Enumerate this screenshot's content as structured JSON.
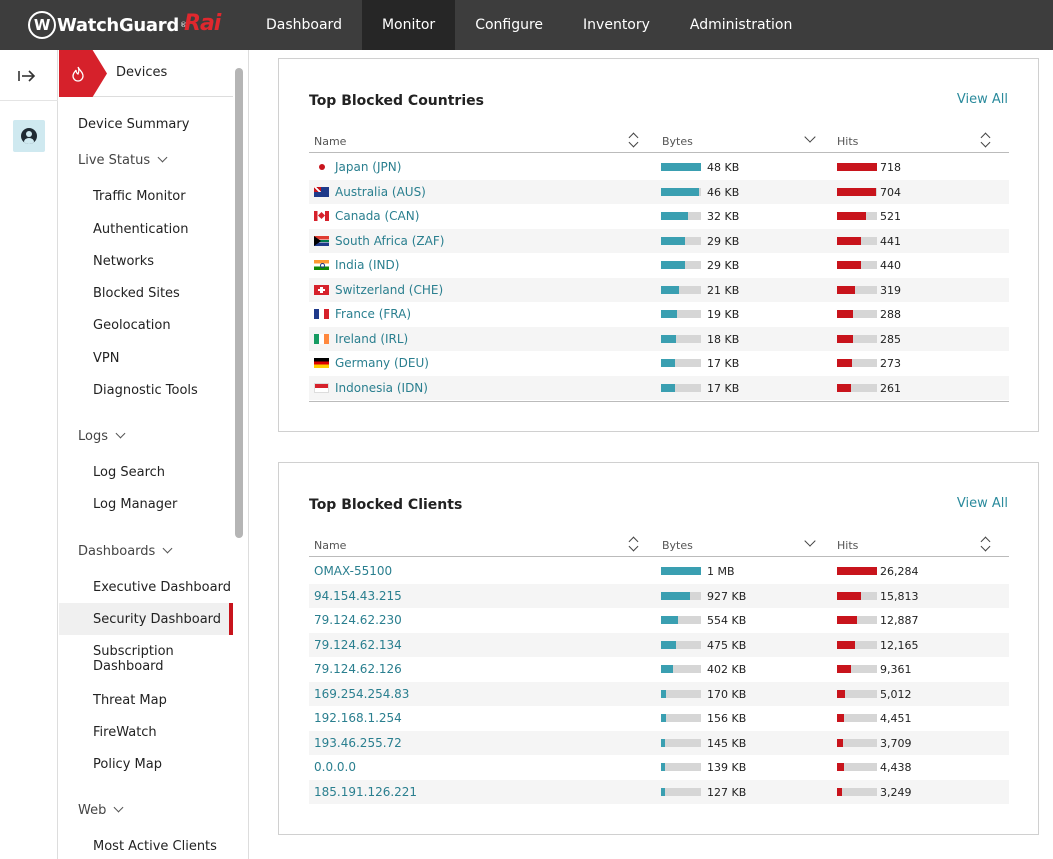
{
  "topbar": {
    "brand": "WatchGuard",
    "brand_tm": "®",
    "product": "Rai",
    "nav": [
      {
        "label": "Dashboard",
        "active": false
      },
      {
        "label": "Monitor",
        "active": true
      },
      {
        "label": "Configure",
        "active": false
      },
      {
        "label": "Inventory",
        "active": false
      },
      {
        "label": "Administration",
        "active": false
      }
    ]
  },
  "rail": {
    "toggle_icon": "expand-arrow-icon",
    "user_icon": "user-circle-icon"
  },
  "sidebar": {
    "header": "Devices",
    "items": [
      {
        "label": "Device Summary",
        "level": 1
      },
      {
        "label": "Live Status",
        "level": 1,
        "section": true
      },
      {
        "label": "Traffic Monitor",
        "level": 2
      },
      {
        "label": "Authentication",
        "level": 2
      },
      {
        "label": "Networks",
        "level": 2
      },
      {
        "label": "Blocked Sites",
        "level": 2
      },
      {
        "label": "Geolocation",
        "level": 2
      },
      {
        "label": "VPN",
        "level": 2
      },
      {
        "label": "Diagnostic Tools",
        "level": 2
      },
      {
        "label": "Logs",
        "level": 1,
        "section": true
      },
      {
        "label": "Log Search",
        "level": 2
      },
      {
        "label": "Log Manager",
        "level": 2
      },
      {
        "label": "Dashboards",
        "level": 1,
        "section": true
      },
      {
        "label": "Executive Dashboard",
        "level": 2
      },
      {
        "label": "Security Dashboard",
        "level": 2,
        "active": true
      },
      {
        "label": "Subscription",
        "level": 2
      },
      {
        "label": "Dashboard",
        "level": 2
      },
      {
        "label": "Threat Map",
        "level": 2
      },
      {
        "label": "FireWatch",
        "level": 2
      },
      {
        "label": "Policy Map",
        "level": 2
      },
      {
        "label": "Web",
        "level": 1,
        "section": true
      },
      {
        "label": "Most Active Clients",
        "level": 2
      }
    ]
  },
  "countries": {
    "title": "Top Blocked Countries",
    "view_all": "View All",
    "columns": {
      "name": "Name",
      "bytes": "Bytes",
      "hits": "Hits"
    },
    "rows": [
      {
        "name": "Japan (JPN)",
        "flag": "jp",
        "bytes": "48 KB",
        "bytes_frac": 1.0,
        "hits": "718",
        "hits_frac": 1.0
      },
      {
        "name": "Australia (AUS)",
        "flag": "au",
        "bytes": "46 KB",
        "bytes_frac": 0.96,
        "hits": "704",
        "hits_frac": 0.98
      },
      {
        "name": "Canada (CAN)",
        "flag": "ca",
        "bytes": "32 KB",
        "bytes_frac": 0.67,
        "hits": "521",
        "hits_frac": 0.73
      },
      {
        "name": "South Africa (ZAF)",
        "flag": "za",
        "bytes": "29 KB",
        "bytes_frac": 0.6,
        "hits": "441",
        "hits_frac": 0.61
      },
      {
        "name": "India (IND)",
        "flag": "in",
        "bytes": "29 KB",
        "bytes_frac": 0.6,
        "hits": "440",
        "hits_frac": 0.61
      },
      {
        "name": "Switzerland (CHE)",
        "flag": "ch",
        "bytes": "21 KB",
        "bytes_frac": 0.44,
        "hits": "319",
        "hits_frac": 0.44
      },
      {
        "name": "France (FRA)",
        "flag": "fr",
        "bytes": "19 KB",
        "bytes_frac": 0.4,
        "hits": "288",
        "hits_frac": 0.4
      },
      {
        "name": "Ireland (IRL)",
        "flag": "ie",
        "bytes": "18 KB",
        "bytes_frac": 0.38,
        "hits": "285",
        "hits_frac": 0.4
      },
      {
        "name": "Germany (DEU)",
        "flag": "de",
        "bytes": "17 KB",
        "bytes_frac": 0.35,
        "hits": "273",
        "hits_frac": 0.38
      },
      {
        "name": "Indonesia (IDN)",
        "flag": "id",
        "bytes": "17 KB",
        "bytes_frac": 0.35,
        "hits": "261",
        "hits_frac": 0.36
      }
    ]
  },
  "clients": {
    "title": "Top Blocked Clients",
    "view_all": "View All",
    "columns": {
      "name": "Name",
      "bytes": "Bytes",
      "hits": "Hits"
    },
    "rows": [
      {
        "name": "OMAX-55100",
        "bytes": "1 MB",
        "bytes_frac": 1.0,
        "hits": "26,284",
        "hits_frac": 1.0
      },
      {
        "name": "94.154.43.215",
        "bytes": "927 KB",
        "bytes_frac": 0.72,
        "hits": "15,813",
        "hits_frac": 0.6
      },
      {
        "name": "79.124.62.230",
        "bytes": "554 KB",
        "bytes_frac": 0.43,
        "hits": "12,887",
        "hits_frac": 0.49
      },
      {
        "name": "79.124.62.134",
        "bytes": "475 KB",
        "bytes_frac": 0.37,
        "hits": "12,165",
        "hits_frac": 0.46
      },
      {
        "name": "79.124.62.126",
        "bytes": "402 KB",
        "bytes_frac": 0.31,
        "hits": "9,361",
        "hits_frac": 0.36
      },
      {
        "name": "169.254.254.83",
        "bytes": "170 KB",
        "bytes_frac": 0.13,
        "hits": "5,012",
        "hits_frac": 0.19
      },
      {
        "name": "192.168.1.254",
        "bytes": "156 KB",
        "bytes_frac": 0.12,
        "hits": "4,451",
        "hits_frac": 0.17
      },
      {
        "name": "193.46.255.72",
        "bytes": "145 KB",
        "bytes_frac": 0.11,
        "hits": "3,709",
        "hits_frac": 0.14
      },
      {
        "name": "0.0.0.0",
        "bytes": "139 KB",
        "bytes_frac": 0.11,
        "hits": "4,438",
        "hits_frac": 0.17
      },
      {
        "name": "185.191.126.221",
        "bytes": "127 KB",
        "bytes_frac": 0.1,
        "hits": "3,249",
        "hits_frac": 0.12
      }
    ]
  },
  "colors": {
    "bytes_bar": "#3a9fb1",
    "hits_bar": "#c8141c",
    "accent_red": "#d6212b",
    "link": "#2a7f8f"
  }
}
